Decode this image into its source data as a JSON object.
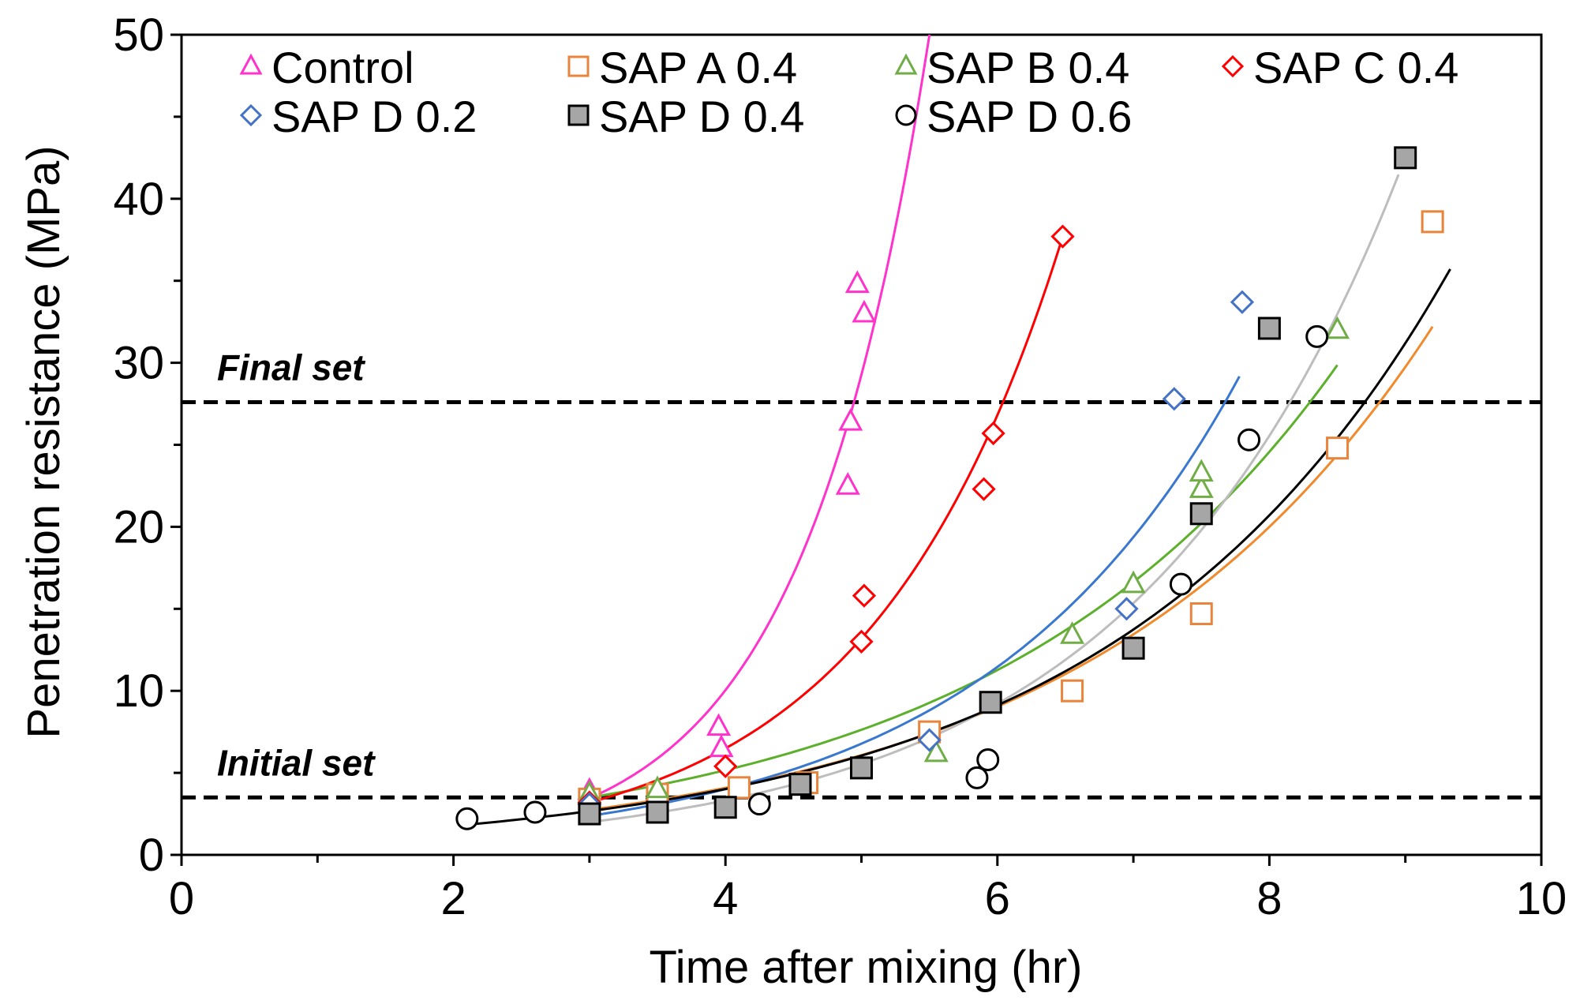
{
  "chart_data": {
    "type": "scatter",
    "title": "",
    "xlabel": "Time after mixing (hr)",
    "ylabel": "Penetration resistance (MPa)",
    "xlim": [
      0,
      10
    ],
    "ylim": [
      0,
      50
    ],
    "xticks": [
      0,
      2,
      4,
      6,
      8,
      10
    ],
    "yticks": [
      0,
      10,
      20,
      30,
      40,
      50
    ],
    "grid": false,
    "legend_position": "top",
    "reference_lines": [
      {
        "name": "final-set",
        "label": "Final set",
        "y": 27.6
      },
      {
        "name": "initial-set",
        "label": "Initial set",
        "y": 3.5
      }
    ],
    "series": [
      {
        "name": "Control",
        "marker": "triangle-open",
        "color": "#ff33cc",
        "points": [
          [
            3.0,
            3.9
          ],
          [
            3.0,
            3.6
          ],
          [
            3.5,
            3.8
          ],
          [
            3.95,
            7.8
          ],
          [
            3.97,
            6.5
          ],
          [
            4.9,
            22.5
          ],
          [
            4.92,
            26.4
          ],
          [
            4.97,
            34.8
          ],
          [
            5.02,
            33.0
          ]
        ],
        "fit": {
          "a": 0.139,
          "b": 1.07
        }
      },
      {
        "name": "SAP A 0.4",
        "marker": "square-open",
        "color": "#e8843c",
        "points": [
          [
            3.0,
            3.4
          ],
          [
            3.5,
            3.7
          ],
          [
            4.1,
            4.1
          ],
          [
            4.6,
            4.4
          ],
          [
            5.5,
            7.5
          ],
          [
            6.55,
            10.0
          ],
          [
            7.5,
            14.7
          ],
          [
            8.5,
            24.8
          ],
          [
            9.2,
            38.6
          ]
        ],
        "fit": {
          "a": 0.835,
          "b": 0.397,
          "xmax": 9.2
        }
      },
      {
        "name": "SAP B 0.4",
        "marker": "triangle-open",
        "color": "#70ad47",
        "points": [
          [
            3.0,
            3.7
          ],
          [
            3.5,
            4.0
          ],
          [
            5.55,
            6.2
          ],
          [
            6.55,
            13.4
          ],
          [
            7.0,
            16.5
          ],
          [
            7.5,
            22.3
          ],
          [
            7.5,
            23.3
          ],
          [
            8.5,
            32.0
          ]
        ],
        "fit": {
          "a": 1.085,
          "b": 0.39,
          "xmax": 8.5
        }
      },
      {
        "name": "SAP C 0.4",
        "marker": "diamond-open",
        "color": "#ff0000",
        "points": [
          [
            3.0,
            3.2
          ],
          [
            4.0,
            5.4
          ],
          [
            5.0,
            13.0
          ],
          [
            5.02,
            15.8
          ],
          [
            5.9,
            22.3
          ],
          [
            5.97,
            25.7
          ],
          [
            6.48,
            37.7
          ]
        ],
        "fit": {
          "a": 0.381,
          "b": 0.709,
          "xmax": 6.48
        }
      },
      {
        "name": "SAP D 0.2",
        "marker": "diamond-open",
        "color": "#4472c4",
        "points": [
          [
            3.0,
            3.1
          ],
          [
            5.5,
            7.0
          ],
          [
            6.95,
            15.0
          ],
          [
            7.3,
            27.8
          ],
          [
            7.8,
            33.7
          ]
        ],
        "fit": {
          "a": 0.491,
          "b": 0.525,
          "xmax": 7.78
        }
      },
      {
        "name": "SAP D 0.4",
        "marker": "square-filled",
        "color": "#9a9a9a",
        "points": [
          [
            3.0,
            2.5
          ],
          [
            3.5,
            2.6
          ],
          [
            4.0,
            2.9
          ],
          [
            4.55,
            4.3
          ],
          [
            5.0,
            5.3
          ],
          [
            5.95,
            9.3
          ],
          [
            7.0,
            12.6
          ],
          [
            7.5,
            20.8
          ],
          [
            8.0,
            32.1
          ],
          [
            9.0,
            42.5
          ]
        ],
        "fit": {
          "a": 0.432,
          "b": 0.51,
          "xmax": 8.95
        }
      },
      {
        "name": "SAP D 0.6",
        "marker": "circle-open",
        "color": "#000000",
        "points": [
          [
            2.1,
            2.2
          ],
          [
            2.6,
            2.6
          ],
          [
            4.25,
            3.1
          ],
          [
            5.85,
            4.7
          ],
          [
            5.93,
            5.8
          ],
          [
            7.35,
            16.5
          ],
          [
            7.85,
            25.3
          ],
          [
            8.35,
            31.6
          ]
        ],
        "fit": {
          "a": 0.779,
          "b": 0.41,
          "xmin": 2.08,
          "xmax": 9.33
        }
      }
    ]
  }
}
